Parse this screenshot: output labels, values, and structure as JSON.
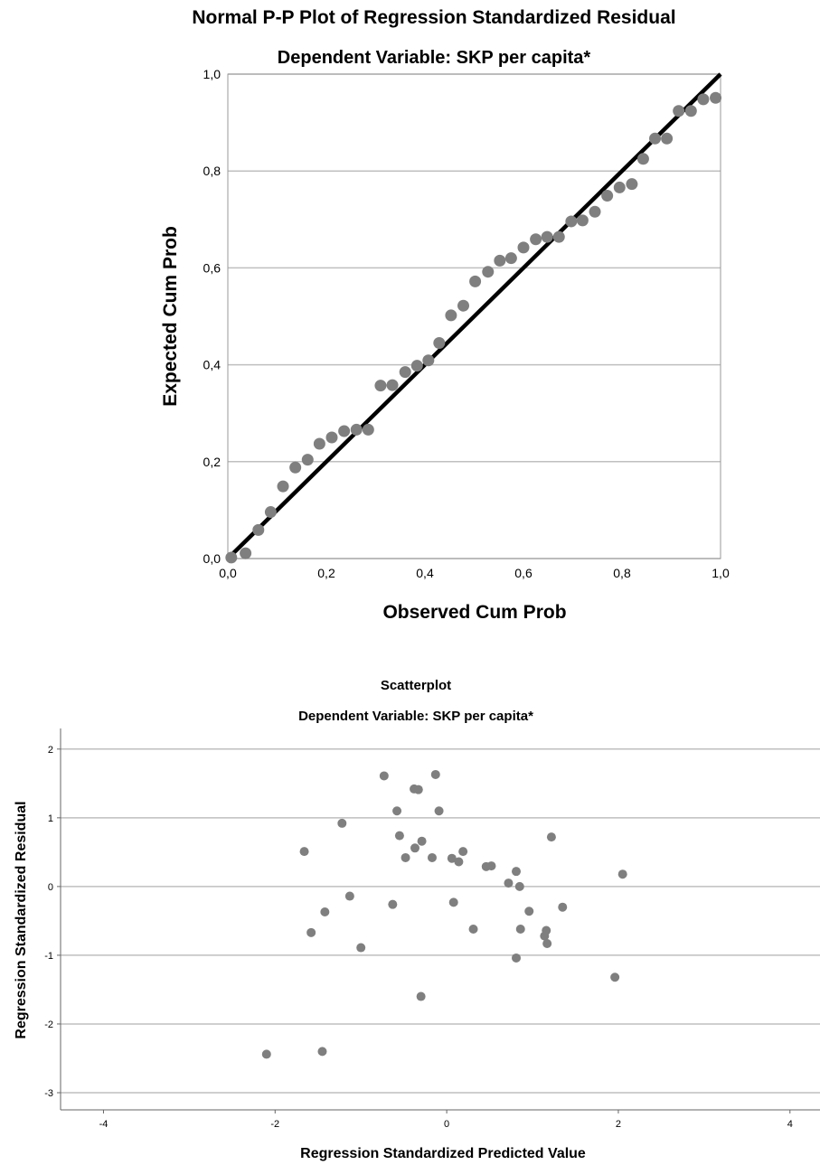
{
  "chart_data": [
    {
      "type": "scatter",
      "title": "Normal P-P Plot of Regression Standardized Residual",
      "subtitle": "Dependent Variable: SKP per capita*",
      "xlabel": "Observed Cum Prob",
      "ylabel": "Expected Cum Prob",
      "xlim": [
        0,
        1
      ],
      "ylim": [
        0,
        1
      ],
      "x_ticks": [
        "0,0",
        "0,2",
        "0,4",
        "0,6",
        "0,8",
        "1,0"
      ],
      "y_ticks": [
        "0,0",
        "0,2",
        "0,4",
        "0,6",
        "0,8",
        "1,0"
      ],
      "grid": "horizontal",
      "reference_line": [
        [
          0,
          0
        ],
        [
          1,
          1
        ]
      ],
      "point_color": "#7f7f7f",
      "line_color": "#000000",
      "points": [
        [
          0.007,
          0.002
        ],
        [
          0.036,
          0.011
        ],
        [
          0.062,
          0.059
        ],
        [
          0.087,
          0.096
        ],
        [
          0.112,
          0.149
        ],
        [
          0.137,
          0.188
        ],
        [
          0.162,
          0.204
        ],
        [
          0.186,
          0.237
        ],
        [
          0.211,
          0.25
        ],
        [
          0.236,
          0.263
        ],
        [
          0.261,
          0.266
        ],
        [
          0.285,
          0.266
        ],
        [
          0.31,
          0.357
        ],
        [
          0.334,
          0.358
        ],
        [
          0.36,
          0.385
        ],
        [
          0.384,
          0.398
        ],
        [
          0.407,
          0.409
        ],
        [
          0.429,
          0.445
        ],
        [
          0.453,
          0.502
        ],
        [
          0.478,
          0.522
        ],
        [
          0.502,
          0.572
        ],
        [
          0.528,
          0.592
        ],
        [
          0.552,
          0.615
        ],
        [
          0.575,
          0.62
        ],
        [
          0.6,
          0.642
        ],
        [
          0.625,
          0.659
        ],
        [
          0.648,
          0.664
        ],
        [
          0.672,
          0.664
        ],
        [
          0.697,
          0.696
        ],
        [
          0.72,
          0.698
        ],
        [
          0.745,
          0.716
        ],
        [
          0.77,
          0.749
        ],
        [
          0.795,
          0.766
        ],
        [
          0.82,
          0.773
        ],
        [
          0.843,
          0.825
        ],
        [
          0.867,
          0.867
        ],
        [
          0.891,
          0.867
        ],
        [
          0.915,
          0.924
        ],
        [
          0.94,
          0.924
        ],
        [
          0.965,
          0.948
        ],
        [
          0.99,
          0.951
        ]
      ]
    },
    {
      "type": "scatter",
      "title": "Scatterplot",
      "subtitle": "Dependent Variable: SKP per capita*",
      "xlabel": "Regression Standardized Predicted Value",
      "ylabel": "Regression Standardized Residual",
      "xlim": [
        -4.5,
        4.35
      ],
      "ylim": [
        -3.25,
        2.3
      ],
      "x_ticks": [
        "-4",
        "-2",
        "0",
        "2",
        "4"
      ],
      "y_ticks": [
        "2",
        "1",
        "0",
        "-1",
        "-2",
        "-3"
      ],
      "grid": "horizontal",
      "point_color": "#7f7f7f",
      "points": [
        [
          -0.73,
          1.61
        ],
        [
          -0.13,
          1.63
        ],
        [
          -0.38,
          1.42
        ],
        [
          -0.33,
          1.41
        ],
        [
          -0.58,
          1.1
        ],
        [
          -0.09,
          1.1
        ],
        [
          -1.22,
          0.92
        ],
        [
          1.22,
          0.72
        ],
        [
          -0.55,
          0.74
        ],
        [
          -0.29,
          0.66
        ],
        [
          -0.37,
          0.56
        ],
        [
          -1.66,
          0.51
        ],
        [
          0.19,
          0.51
        ],
        [
          -0.48,
          0.42
        ],
        [
          -0.17,
          0.42
        ],
        [
          0.06,
          0.41
        ],
        [
          0.14,
          0.36
        ],
        [
          0.46,
          0.29
        ],
        [
          0.52,
          0.3
        ],
        [
          0.81,
          0.22
        ],
        [
          2.05,
          0.18
        ],
        [
          0.72,
          0.05
        ],
        [
          0.85,
          0.0
        ],
        [
          -1.13,
          -0.14
        ],
        [
          -0.63,
          -0.26
        ],
        [
          0.08,
          -0.23
        ],
        [
          1.35,
          -0.3
        ],
        [
          0.96,
          -0.36
        ],
        [
          -1.42,
          -0.37
        ],
        [
          0.31,
          -0.62
        ],
        [
          0.86,
          -0.62
        ],
        [
          1.16,
          -0.64
        ],
        [
          -1.58,
          -0.67
        ],
        [
          1.14,
          -0.72
        ],
        [
          1.17,
          -0.83
        ],
        [
          -1.0,
          -0.89
        ],
        [
          0.81,
          -1.04
        ],
        [
          1.96,
          -1.32
        ],
        [
          -0.3,
          -1.6
        ],
        [
          -1.45,
          -2.4
        ],
        [
          -2.1,
          -2.44
        ]
      ]
    }
  ]
}
